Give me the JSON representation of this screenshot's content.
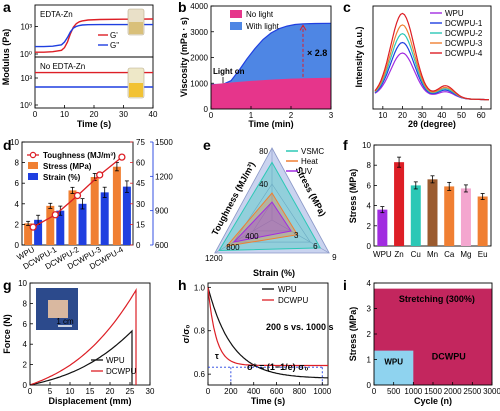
{
  "colors": {
    "red": "#dd1f26",
    "black": "#111111",
    "blue": "#1f3fe0",
    "orange": "#f07f32",
    "fill_blue": "#4e86e4",
    "fill_pink": "#e6358b",
    "purple": "#a12ce0",
    "teal": "#2cc8b6",
    "green": "#79c23a",
    "brown": "#9b5b2f",
    "pink_lg": "#f4a6cf",
    "crimson": "#c3265e",
    "light_blue": "#8fd3ef"
  },
  "panels": {
    "a": {
      "label": "a",
      "top": {
        "title": "EDTA-Zn",
        "ylim_exp": [
          0,
          5
        ],
        "yticks": [
          "10⁰",
          "10³"
        ],
        "series": [
          {
            "name": "G'",
            "color": "red",
            "x": [
              0,
              3,
              6,
              9,
              10,
              11,
              12,
              13,
              14,
              15,
              16,
              18,
              22,
              30,
              40
            ],
            "logy": [
              0.2,
              0.2,
              0.25,
              0.4,
              0.7,
              1.3,
              2.2,
              2.9,
              3.3,
              3.5,
              3.6,
              3.7,
              3.75,
              3.78,
              3.8
            ]
          },
          {
            "name": "G''",
            "color": "blue",
            "x": [
              0,
              3,
              6,
              9,
              10,
              11,
              12,
              13,
              14,
              15,
              16,
              18,
              22,
              30,
              40
            ],
            "logy": [
              0.8,
              0.8,
              0.85,
              1.0,
              1.3,
              1.8,
              2.4,
              2.8,
              3.0,
              3.1,
              3.15,
              3.18,
              3.2,
              3.2,
              3.2
            ]
          }
        ]
      },
      "bottom": {
        "title": "No EDTA-Zn",
        "ylim_exp": [
          0,
          5
        ],
        "yticks": [
          "10⁰",
          "10³"
        ],
        "series": [
          {
            "name": "G'",
            "color": "red",
            "x": [
              0,
              40
            ],
            "logy": [
              3.6,
              3.6
            ]
          },
          {
            "name": "G''",
            "color": "blue",
            "x": [
              0,
              40
            ],
            "logy": [
              2.0,
              2.0
            ]
          }
        ]
      },
      "xlabel": "Time (s)",
      "ylabel": "Modulus (Pa)",
      "xticks": [
        0,
        10,
        20,
        30,
        40
      ],
      "xlim": [
        0,
        40
      ]
    },
    "b": {
      "label": "b",
      "xlabel": "Time (min)",
      "ylabel": "Viscosity (mPa · s)",
      "xlim": [
        0,
        3
      ],
      "ylim": [
        0,
        4000
      ],
      "xticks": [
        0,
        1,
        2,
        3
      ],
      "yticks": [
        0,
        1000,
        2000,
        3000,
        4000
      ],
      "legend": [
        "No light",
        "With light"
      ],
      "annotation": "Light on",
      "factor": "× 2.8",
      "no_light": {
        "x": [
          0,
          0.5,
          1,
          1.5,
          2,
          2.5,
          3
        ],
        "y": [
          950,
          1030,
          1090,
          1140,
          1180,
          1200,
          1210
        ]
      },
      "with_light": {
        "x": [
          0,
          0.3,
          0.5,
          0.7,
          0.9,
          1.1,
          1.3,
          1.5,
          1.7,
          1.9,
          2.1,
          2.3,
          2.6,
          3
        ],
        "y": [
          950,
          960,
          1100,
          1500,
          1950,
          2350,
          2700,
          2950,
          3120,
          3220,
          3280,
          3310,
          3320,
          3330
        ]
      }
    },
    "c": {
      "label": "c",
      "xlabel": "2θ (degree)",
      "ylabel": "Intensity (a.u.)",
      "xlim": [
        5,
        65
      ],
      "xticks": [
        10,
        20,
        30,
        40,
        50,
        60
      ],
      "legend_series": [
        "WPU",
        "DCWPU-1",
        "DCWPU-2",
        "DCWPU-3",
        "DCWPU-4"
      ],
      "legend_colors": [
        "purple",
        "blue",
        "teal",
        "orange",
        "red"
      ],
      "peaks": [
        0.5,
        0.62,
        0.72,
        0.82,
        0.95
      ]
    },
    "d": {
      "label": "d",
      "categories": [
        "WPU",
        "DCWPU-1",
        "DCWPU-2",
        "DCWPU-3",
        "DCWPU-4"
      ],
      "stress": [
        2.1,
        3.8,
        5.3,
        6.6,
        7.6
      ],
      "stress_err": [
        0.2,
        0.25,
        0.3,
        0.35,
        0.4
      ],
      "strain": [
        820,
        900,
        960,
        1060,
        1110
      ],
      "strain_err": [
        40,
        40,
        45,
        45,
        50
      ],
      "toughness": [
        13,
        22,
        36,
        51,
        64
      ],
      "ylim_left": [
        0,
        10
      ],
      "yticks_left": [
        0,
        2,
        4,
        6,
        8,
        10
      ],
      "ylim_strain": [
        600,
        1500
      ],
      "yticks_strain": [
        600,
        900,
        1200,
        1500
      ],
      "ylim_tough": [
        0,
        75
      ],
      "yticks_tough": [
        0,
        15,
        30,
        45,
        60,
        75
      ],
      "legend": [
        "Toughness (MJ/m³)",
        "Stress (MPa)",
        "Strain (%)"
      ]
    },
    "e": {
      "label": "e",
      "axes": [
        "Toughness (MJ/m³)",
        "Stress (MPa)",
        "Strain (%)"
      ],
      "tough_ticks": [
        "40",
        "80"
      ],
      "stress_ticks": [
        "3",
        "6",
        "9"
      ],
      "strain_ticks": [
        "400",
        "800",
        "1200"
      ],
      "tough_max": 80,
      "stress_max": 9,
      "strain_max": 1200,
      "series": [
        {
          "name": "VSMC",
          "color": "teal",
          "tough": 64,
          "stress": 7.6,
          "strain": 1110
        },
        {
          "name": "Heat",
          "color": "orange",
          "tough": 30,
          "stress": 4,
          "strain": 950
        },
        {
          "name": "UV",
          "color": "purple",
          "tough": 20,
          "stress": 3,
          "strain": 800
        }
      ]
    },
    "f": {
      "label": "f",
      "ylabel": "Stress (MPa)",
      "categories": [
        "WPU",
        "Zn",
        "Cu",
        "Mn",
        "Ca",
        "Mg",
        "Eu"
      ],
      "values": [
        3.6,
        8.3,
        6.0,
        6.6,
        5.9,
        5.7,
        4.9
      ],
      "errors": [
        0.3,
        0.5,
        0.35,
        0.35,
        0.4,
        0.35,
        0.3
      ],
      "colors": [
        "purple",
        "red",
        "teal",
        "brown",
        "orange",
        "pink_lg",
        "orange"
      ],
      "ylim": [
        0,
        10
      ],
      "yticks": [
        0,
        2,
        4,
        6,
        8,
        10
      ]
    },
    "g": {
      "label": "g",
      "xlabel": "Displacement (mm)",
      "ylabel": "Force (N)",
      "xlim": [
        0,
        30
      ],
      "ylim": [
        0,
        10
      ],
      "xticks": [
        0,
        5,
        10,
        15,
        20,
        25,
        30
      ],
      "yticks": [
        0,
        2,
        4,
        6,
        8,
        10
      ],
      "legend": [
        "WPU",
        "DCWPU"
      ],
      "scale_bar": "1 cm"
    },
    "h": {
      "label": "h",
      "xlabel": "Time (s)",
      "ylabel": "σ/σ₀",
      "xlim": [
        0,
        1050
      ],
      "ylim": [
        0.55,
        1.02
      ],
      "xticks": [
        0,
        200,
        400,
        600,
        800,
        1000
      ],
      "yticks": [
        0.6,
        0.8,
        1.0
      ],
      "legend": [
        "WPU",
        "DCWPU"
      ],
      "note1": "200 s vs. 1000 s",
      "note2": "σ* = (1−1/e) σ₀",
      "tau": "τ"
    },
    "i": {
      "label": "i",
      "xlabel": "Cycle (n)",
      "ylabel": "Stress (MPa)",
      "xlim": [
        0,
        3000
      ],
      "ylim": [
        0,
        4
      ],
      "xticks": [
        0,
        500,
        1000,
        1500,
        2000,
        2500,
        3000
      ],
      "yticks": [
        0,
        1,
        2,
        3,
        4
      ],
      "annotation": "Stretching (300%)",
      "wpu_label": "WPU",
      "dcwpu_label": "DCWPU"
    }
  }
}
